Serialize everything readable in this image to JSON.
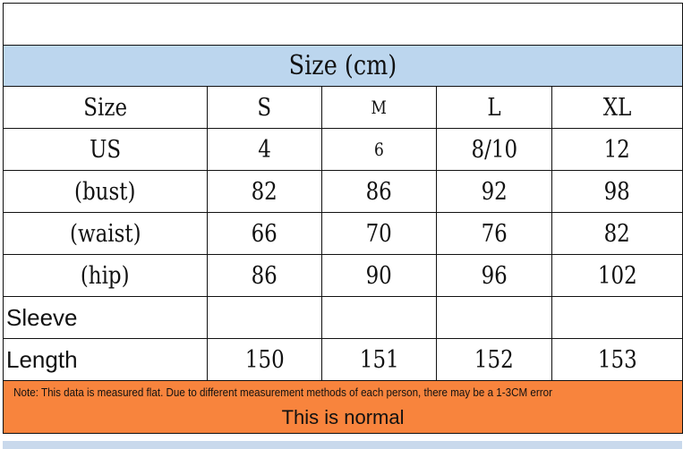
{
  "header": {
    "title": "Size (cm)"
  },
  "columns": [
    "Size",
    "S",
    "M",
    "L",
    "XL"
  ],
  "rows": [
    {
      "label": "US",
      "values": [
        "4",
        "6",
        "8/10",
        "12"
      ]
    },
    {
      "label": "(bust)",
      "values": [
        "82",
        "86",
        "92",
        "98"
      ]
    },
    {
      "label": "(waist)",
      "values": [
        "66",
        "70",
        "76",
        "82"
      ]
    },
    {
      "label": "(hip)",
      "values": [
        "86",
        "90",
        "96",
        "102"
      ]
    },
    {
      "label": "Sleeve",
      "values": [
        "",
        "",
        "",
        ""
      ]
    },
    {
      "label": "Length",
      "values": [
        "150",
        "151",
        "152",
        "153"
      ]
    }
  ],
  "note": {
    "text": "Note: This data is measured flat. Due to different measurement methods of each person, there may be a 1-3CM error",
    "emphasis": "This is normal"
  },
  "colors": {
    "header_bg": "#bcd6ee",
    "note_bg": "#f8843d"
  }
}
